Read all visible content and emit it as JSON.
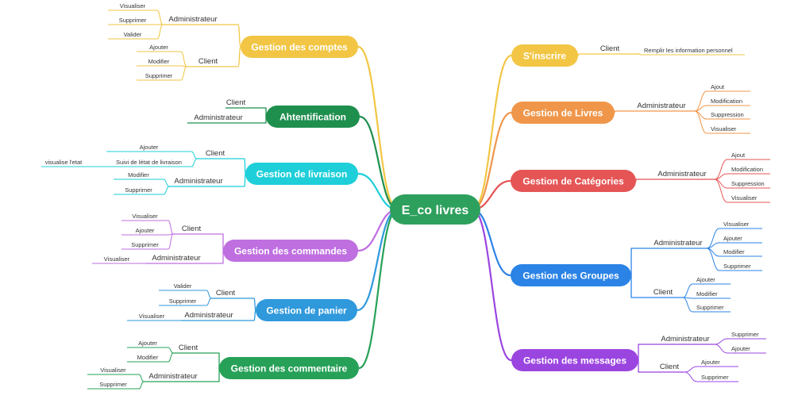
{
  "center": {
    "label": "E_co livres",
    "color": "#2ea05d"
  },
  "branches": [
    {
      "id": "comptes",
      "label": "Gestion des comptes",
      "color": "#f2c644",
      "groups": [
        {
          "label": "Administrateur",
          "items": [
            "Visualiser",
            "Supprimer",
            "Valider"
          ]
        },
        {
          "label": "Client",
          "items": [
            "Ajouter",
            "Modifier",
            "Supprimer"
          ]
        }
      ]
    },
    {
      "id": "auth",
      "label": "Ahtentification",
      "color": "#1f8f4e",
      "groups": [
        {
          "label": "Client",
          "items": []
        },
        {
          "label": "Administrateur",
          "items": []
        }
      ]
    },
    {
      "id": "livraison",
      "label": "Gestion de livraison",
      "color": "#1ecfd9",
      "groups": [
        {
          "label": "Client",
          "items": [
            "Ajouter",
            "Suivi de létat de livraison"
          ],
          "sub": "visualise l'etat"
        },
        {
          "label": "Administrateur",
          "items": [
            "Modifier",
            "Supprimer"
          ]
        }
      ]
    },
    {
      "id": "commandes",
      "label": "Gestion des commandes",
      "color": "#bf6fe0",
      "groups": [
        {
          "label": "Client",
          "items": [
            "Visualiser",
            "Ajouter",
            "Supprimer"
          ]
        },
        {
          "label": "Administrateur",
          "items": [
            "Visualiser"
          ]
        }
      ]
    },
    {
      "id": "panier",
      "label": "Gestion de panier",
      "color": "#2f99dc",
      "groups": [
        {
          "label": "Client",
          "items": [
            "Valider",
            "Supprimer"
          ]
        },
        {
          "label": "Administrateur",
          "items": [
            "Visualiser"
          ]
        }
      ]
    },
    {
      "id": "commentaire",
      "label": "Gestion des commentaire",
      "color": "#27a158",
      "groups": [
        {
          "label": "Client",
          "items": [
            "Ajouter",
            "Modifier"
          ]
        },
        {
          "label": "Administrateur",
          "items": [
            "Visualiser",
            "Supprimer"
          ]
        }
      ]
    },
    {
      "id": "inscrire",
      "label": "S'inscrire",
      "color": "#f2c644",
      "groups": [
        {
          "label": "Client",
          "items": [
            "Remplir les information personnel"
          ]
        }
      ]
    },
    {
      "id": "livres",
      "label": "Gestion de Livres",
      "color": "#f0964a",
      "groups": [
        {
          "label": "Administrateur",
          "items": [
            "Ajout",
            "Modification",
            "Suppression",
            "Visualiser"
          ]
        }
      ]
    },
    {
      "id": "categories",
      "label": "Gestion de Catégories",
      "color": "#e55555",
      "groups": [
        {
          "label": "Administrateur",
          "items": [
            "Ajout",
            "Modification",
            "Suppression",
            "Visualiser"
          ]
        }
      ]
    },
    {
      "id": "groupes",
      "label": "Gestion des Groupes",
      "color": "#2b83e6",
      "groups": [
        {
          "label": "Administrateur",
          "items": [
            "Visualiser",
            "Ajouter",
            "Modifier",
            "Supprimer"
          ]
        },
        {
          "label": "Client",
          "items": [
            "Ajouter",
            "Modifier",
            "Supprimer"
          ]
        }
      ]
    },
    {
      "id": "messages",
      "label": "Gestion des messages",
      "color": "#9b45e0",
      "groups": [
        {
          "label": "Administrateur",
          "items": [
            "Supprimer",
            "Ajouter"
          ]
        },
        {
          "label": "Client",
          "items": [
            "Ajouter",
            "Supprimer"
          ]
        }
      ]
    }
  ]
}
